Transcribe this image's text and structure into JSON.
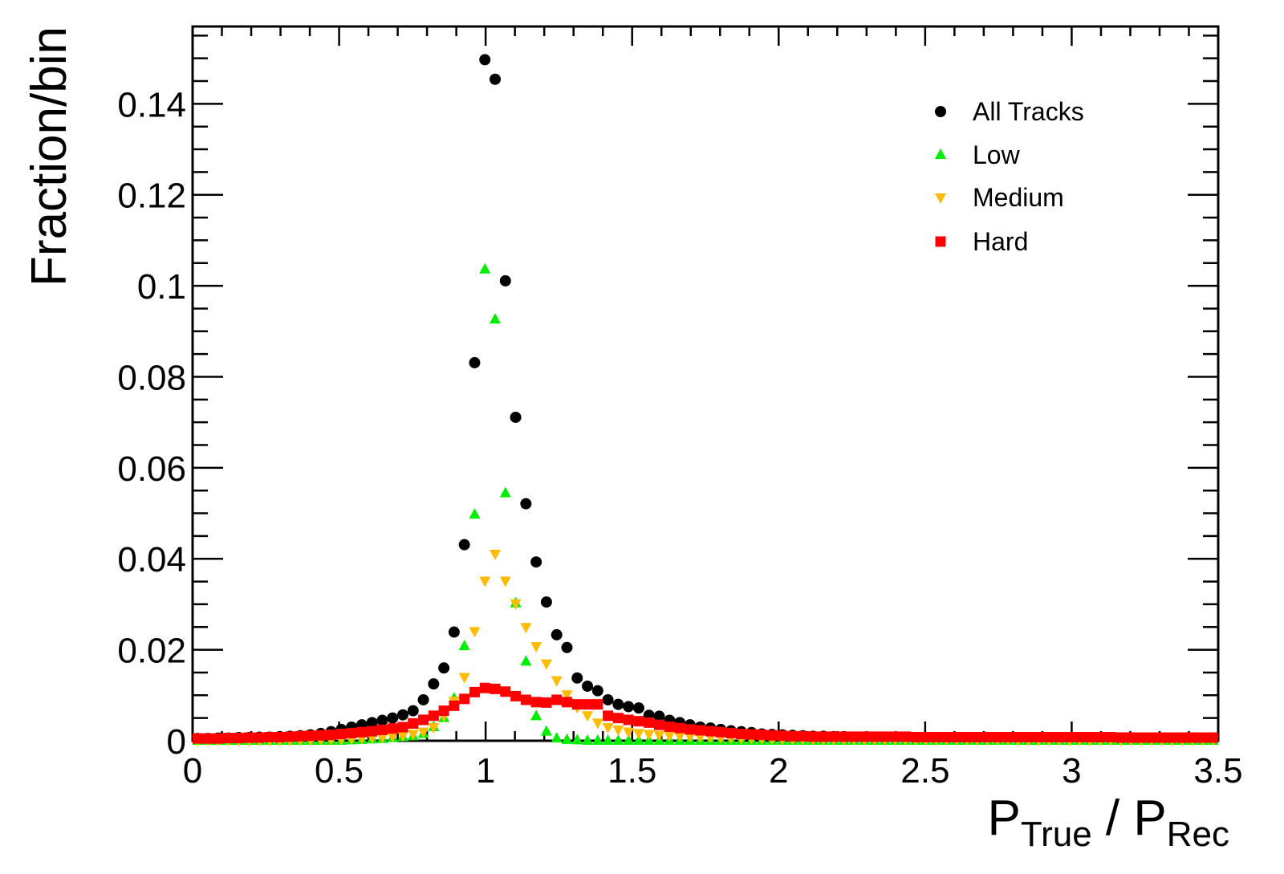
{
  "chart_data": {
    "type": "scatter",
    "title": "",
    "xlabel": {
      "main": "P",
      "sub1": "True",
      "sep": " / ",
      "main2": "P",
      "sub2": "Rec"
    },
    "ylabel": "Fraction/bin",
    "xlim": [
      0,
      3.5
    ],
    "ylim": [
      0,
      0.157
    ],
    "bin_width": 0.035,
    "x_ticks": [
      "0",
      "0.5",
      "1",
      "1.5",
      "2",
      "2.5",
      "3",
      "3.5"
    ],
    "x_tick_values": [
      0,
      0.5,
      1,
      1.5,
      2,
      2.5,
      3,
      3.5
    ],
    "y_ticks": [
      "0",
      "0.02",
      "0.04",
      "0.06",
      "0.08",
      "0.1",
      "0.12",
      "0.14"
    ],
    "y_tick_values": [
      0,
      0.02,
      0.04,
      0.06,
      0.08,
      0.1,
      0.12,
      0.14
    ],
    "grid": false,
    "legend_position": "top-right",
    "series": [
      {
        "name": "All Tracks",
        "marker": "circle",
        "color": "#000000",
        "values": [
          0.0005,
          0.0005,
          0.0006,
          0.0006,
          0.0007,
          0.0007,
          0.0008,
          0.0008,
          0.0009,
          0.001,
          0.0011,
          0.0013,
          0.0016,
          0.002,
          0.0025,
          0.003,
          0.0035,
          0.004,
          0.0045,
          0.005,
          0.0057,
          0.0066,
          0.009,
          0.0125,
          0.016,
          0.0239,
          0.0431,
          0.0831,
          0.1497,
          0.1454,
          0.1011,
          0.0711,
          0.0521,
          0.0393,
          0.0305,
          0.0233,
          0.0205,
          0.0138,
          0.012,
          0.011,
          0.009,
          0.008,
          0.0075,
          0.0072,
          0.0056,
          0.0054,
          0.0045,
          0.004,
          0.0035,
          0.003,
          0.0028,
          0.0025,
          0.0022,
          0.002,
          0.0018,
          0.0015,
          0.0014,
          0.0013,
          0.0012,
          0.0011,
          0.001,
          0.001,
          0.0009,
          0.0009,
          0.0008,
          0.0008,
          0.0008,
          0.0007,
          0.0007,
          0.0007,
          0.0006,
          0.0006,
          0.0006,
          0.0006,
          0.0006,
          0.0006,
          0.0006,
          0.0006,
          0.0006,
          0.0006,
          0.0006,
          0.0006,
          0.0005,
          0.0005,
          0.0005,
          0.0005,
          0.0005,
          0.0005,
          0.0005,
          0.0005,
          0.0005,
          0.0005,
          0.0005,
          0.0005,
          0.0005,
          0.0005,
          0.0005,
          0.0005,
          0.0005,
          0.0005
        ]
      },
      {
        "name": "Low",
        "marker": "triangle-up",
        "color": "#00ee00",
        "values": [
          0,
          0,
          0,
          0,
          0,
          0,
          0,
          0,
          0,
          0,
          0,
          0,
          0,
          0,
          0,
          0.0001,
          0.0002,
          0.0003,
          0.0004,
          0.0006,
          0.0008,
          0.001,
          0.0015,
          0.003,
          0.005,
          0.0093,
          0.0208,
          0.0497,
          0.1036,
          0.0926,
          0.0544,
          0.0302,
          0.0174,
          0.0054,
          0.002,
          0.0005,
          0.0002,
          0.0001,
          0,
          0,
          0,
          0,
          0,
          0,
          0,
          0,
          0,
          0,
          0,
          0,
          0,
          0,
          0,
          0,
          0,
          0,
          0,
          0,
          0,
          0,
          0,
          0,
          0,
          0,
          0,
          0,
          0,
          0,
          0,
          0,
          0,
          0,
          0,
          0,
          0,
          0,
          0,
          0,
          0,
          0,
          0,
          0,
          0,
          0,
          0,
          0,
          0,
          0,
          0,
          0,
          0,
          0,
          0,
          0,
          0,
          0,
          0,
          0,
          0,
          0
        ]
      },
      {
        "name": "Medium",
        "marker": "triangle-down",
        "color": "#ffbb00",
        "values": [
          0.0001,
          0.0001,
          0.0001,
          0.0001,
          0.0001,
          0.0001,
          0.0001,
          0.0001,
          0.0001,
          0.0001,
          0.0002,
          0.0002,
          0.0003,
          0.0003,
          0.0004,
          0.0005,
          0.0006,
          0.0007,
          0.0008,
          0.001,
          0.0012,
          0.0015,
          0.002,
          0.003,
          0.0055,
          0.0088,
          0.014,
          0.0241,
          0.0352,
          0.0411,
          0.0352,
          0.0302,
          0.025,
          0.0208,
          0.017,
          0.0133,
          0.0102,
          0.0074,
          0.0056,
          0.004,
          0.003,
          0.0025,
          0.002,
          0.0017,
          0.0015,
          0.0013,
          0.0012,
          0.0011,
          0.001,
          0.0009,
          0.0008,
          0.0007,
          0.0007,
          0.0006,
          0.0006,
          0.0005,
          0.0005,
          0.0004,
          0.0004,
          0.0004,
          0.0003,
          0.0003,
          0.0003,
          0.0003,
          0.0003,
          0.0003,
          0.0003,
          0.0003,
          0.0003,
          0.0003,
          0.0003,
          0.0003,
          0.0003,
          0.0003,
          0.0003,
          0.0003,
          0.0003,
          0.0003,
          0.0003,
          0.0003,
          0.0002,
          0.0002,
          0.0002,
          0.0002,
          0.0002,
          0.0002,
          0.0002,
          0.0002,
          0.0002,
          0.0002,
          0.0002,
          0.0002,
          0.0002,
          0.0002,
          0.0002,
          0.0002,
          0.0002,
          0.0002,
          0.0002,
          0.0002
        ]
      },
      {
        "name": "Hard",
        "marker": "square",
        "color": "#ff0000",
        "values": [
          0.0005,
          0.0005,
          0.0005,
          0.0006,
          0.0006,
          0.0007,
          0.0007,
          0.0008,
          0.0008,
          0.0009,
          0.001,
          0.0011,
          0.0012,
          0.0013,
          0.0015,
          0.0017,
          0.0019,
          0.0021,
          0.0024,
          0.0027,
          0.003,
          0.0038,
          0.0046,
          0.0055,
          0.0066,
          0.0077,
          0.0092,
          0.0107,
          0.0116,
          0.0114,
          0.0108,
          0.0098,
          0.009,
          0.0085,
          0.0084,
          0.009,
          0.0085,
          0.008,
          0.008,
          0.008,
          0.0055,
          0.005,
          0.0046,
          0.0043,
          0.004,
          0.0035,
          0.0031,
          0.0028,
          0.0025,
          0.0023,
          0.0021,
          0.0019,
          0.0017,
          0.0015,
          0.0014,
          0.0013,
          0.0012,
          0.0011,
          0.001,
          0.001,
          0.0009,
          0.0009,
          0.0009,
          0.0009,
          0.0009,
          0.0009,
          0.0009,
          0.0009,
          0.0009,
          0.0009,
          0.0008,
          0.0008,
          0.0008,
          0.0008,
          0.0008,
          0.0008,
          0.0008,
          0.0008,
          0.0008,
          0.0008,
          0.0008,
          0.0008,
          0.0008,
          0.0008,
          0.0008,
          0.0008,
          0.0008,
          0.0008,
          0.0008,
          0.0008,
          0.0007,
          0.0007,
          0.0007,
          0.0007,
          0.0007,
          0.0007,
          0.0007,
          0.0007,
          0.0007,
          0.0007
        ]
      }
    ]
  }
}
